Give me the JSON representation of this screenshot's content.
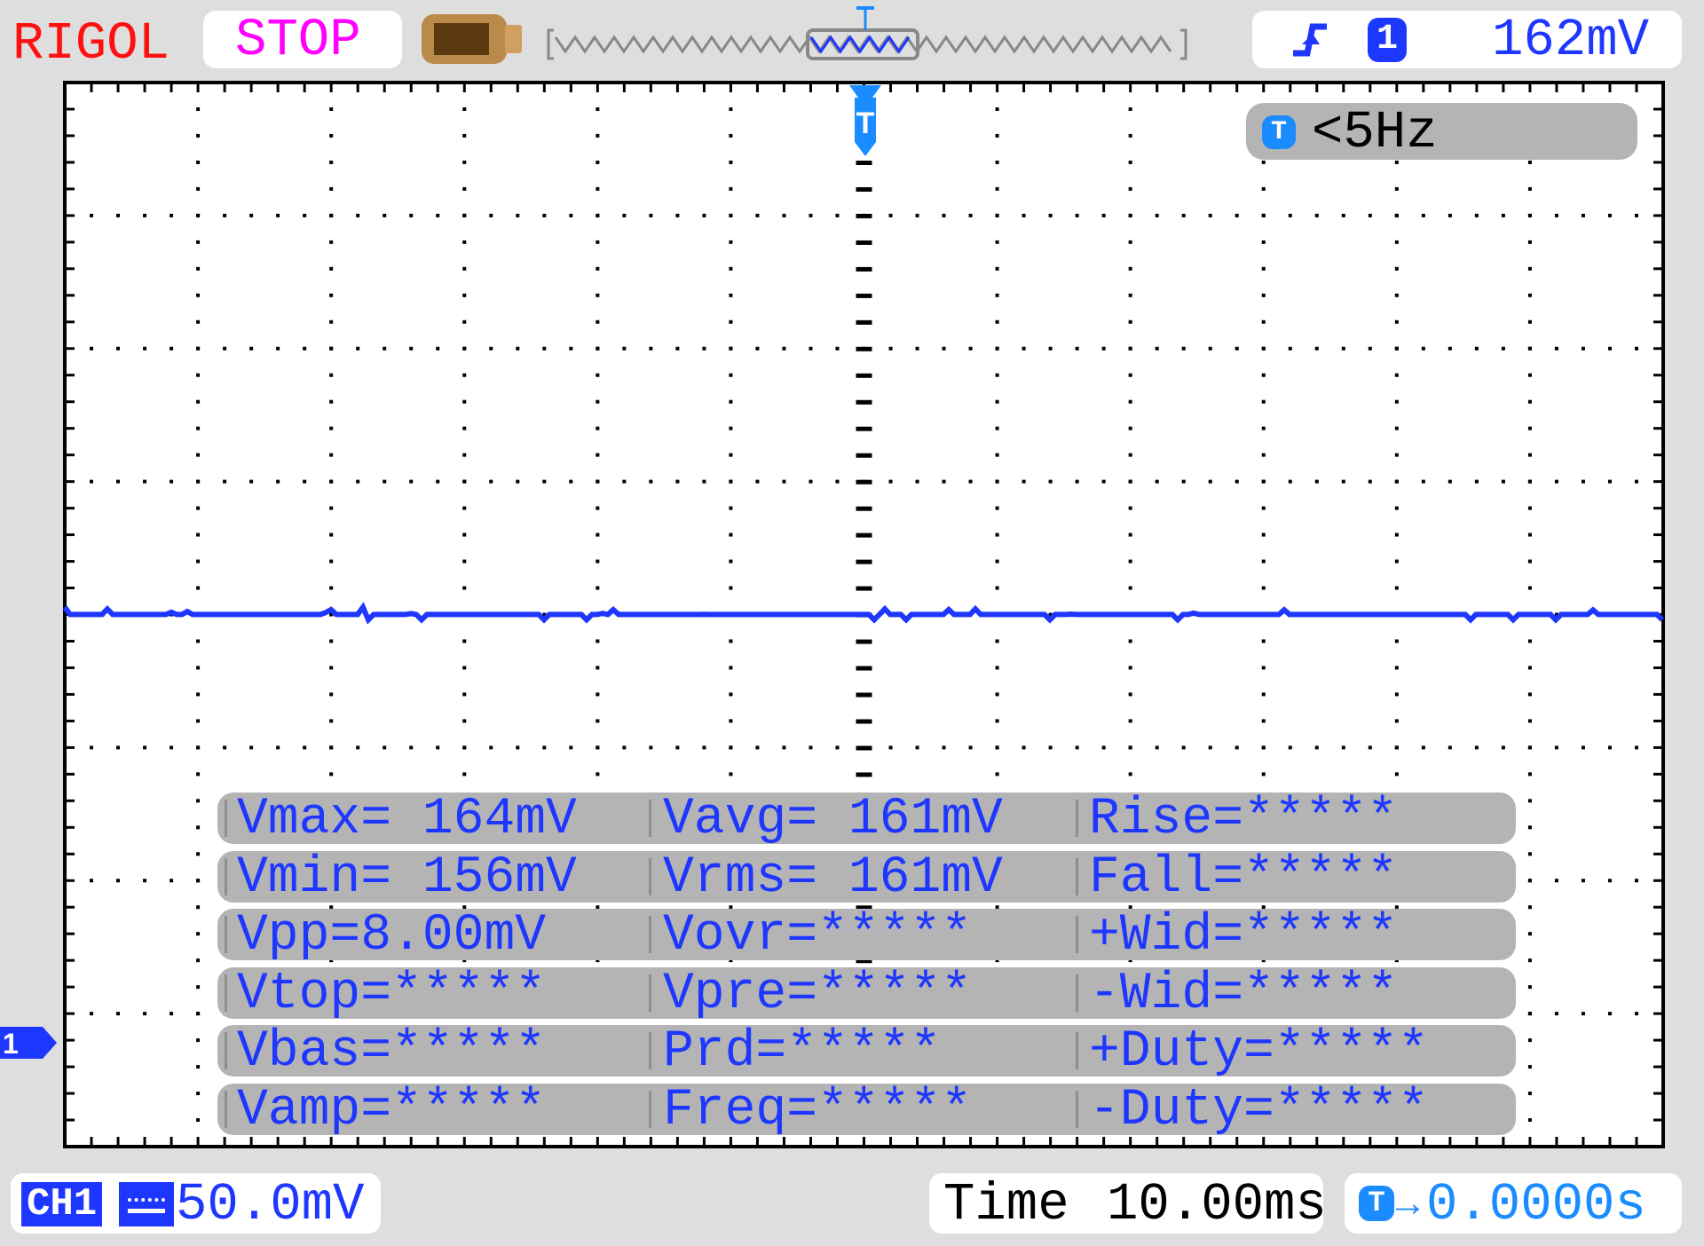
{
  "header": {
    "brand": "RIGOL",
    "run_state": "STOP",
    "memory_icon": "memory-depth-icon",
    "trigger": {
      "slope_icon": "rising-edge-icon",
      "source": "1",
      "level": "162mV"
    }
  },
  "overlay": {
    "trigger_marker": "T",
    "frequency_counter": "<5Hz"
  },
  "measurements": [
    [
      "Vmax= 164mV",
      "Vavg= 161mV",
      "Rise=*****"
    ],
    [
      "Vmin= 156mV",
      "Vrms= 161mV",
      "Fall=*****"
    ],
    [
      "Vpp=8.00mV",
      "Vovr=*****",
      "+Wid=*****"
    ],
    [
      "Vtop=*****",
      "Vpre=*****",
      "-Wid=*****"
    ],
    [
      "Vbas=*****",
      "Prd=*****",
      "+Duty=*****"
    ],
    [
      "Vamp=*****",
      "Freq=*****",
      "-Duty=*****"
    ]
  ],
  "channel_marker": "1",
  "footer": {
    "channel_label": "CH1",
    "coupling_icon": "dc-coupling-icon",
    "volts_per_div": "50.0mV",
    "time_label": "Time",
    "time_per_div": "10.00ms",
    "trigger_offset_label": "T",
    "trigger_offset": "0.0000s"
  },
  "colors": {
    "brand": "#ff1010",
    "run_state": "#ff00ff",
    "trace": "#1e37ff",
    "trigger": "#1a8cff",
    "measurement_bg": "#b4b4b4"
  },
  "waveform": {
    "channel": "CH1",
    "level_mV": 161,
    "noise_pp_mV": 8
  }
}
